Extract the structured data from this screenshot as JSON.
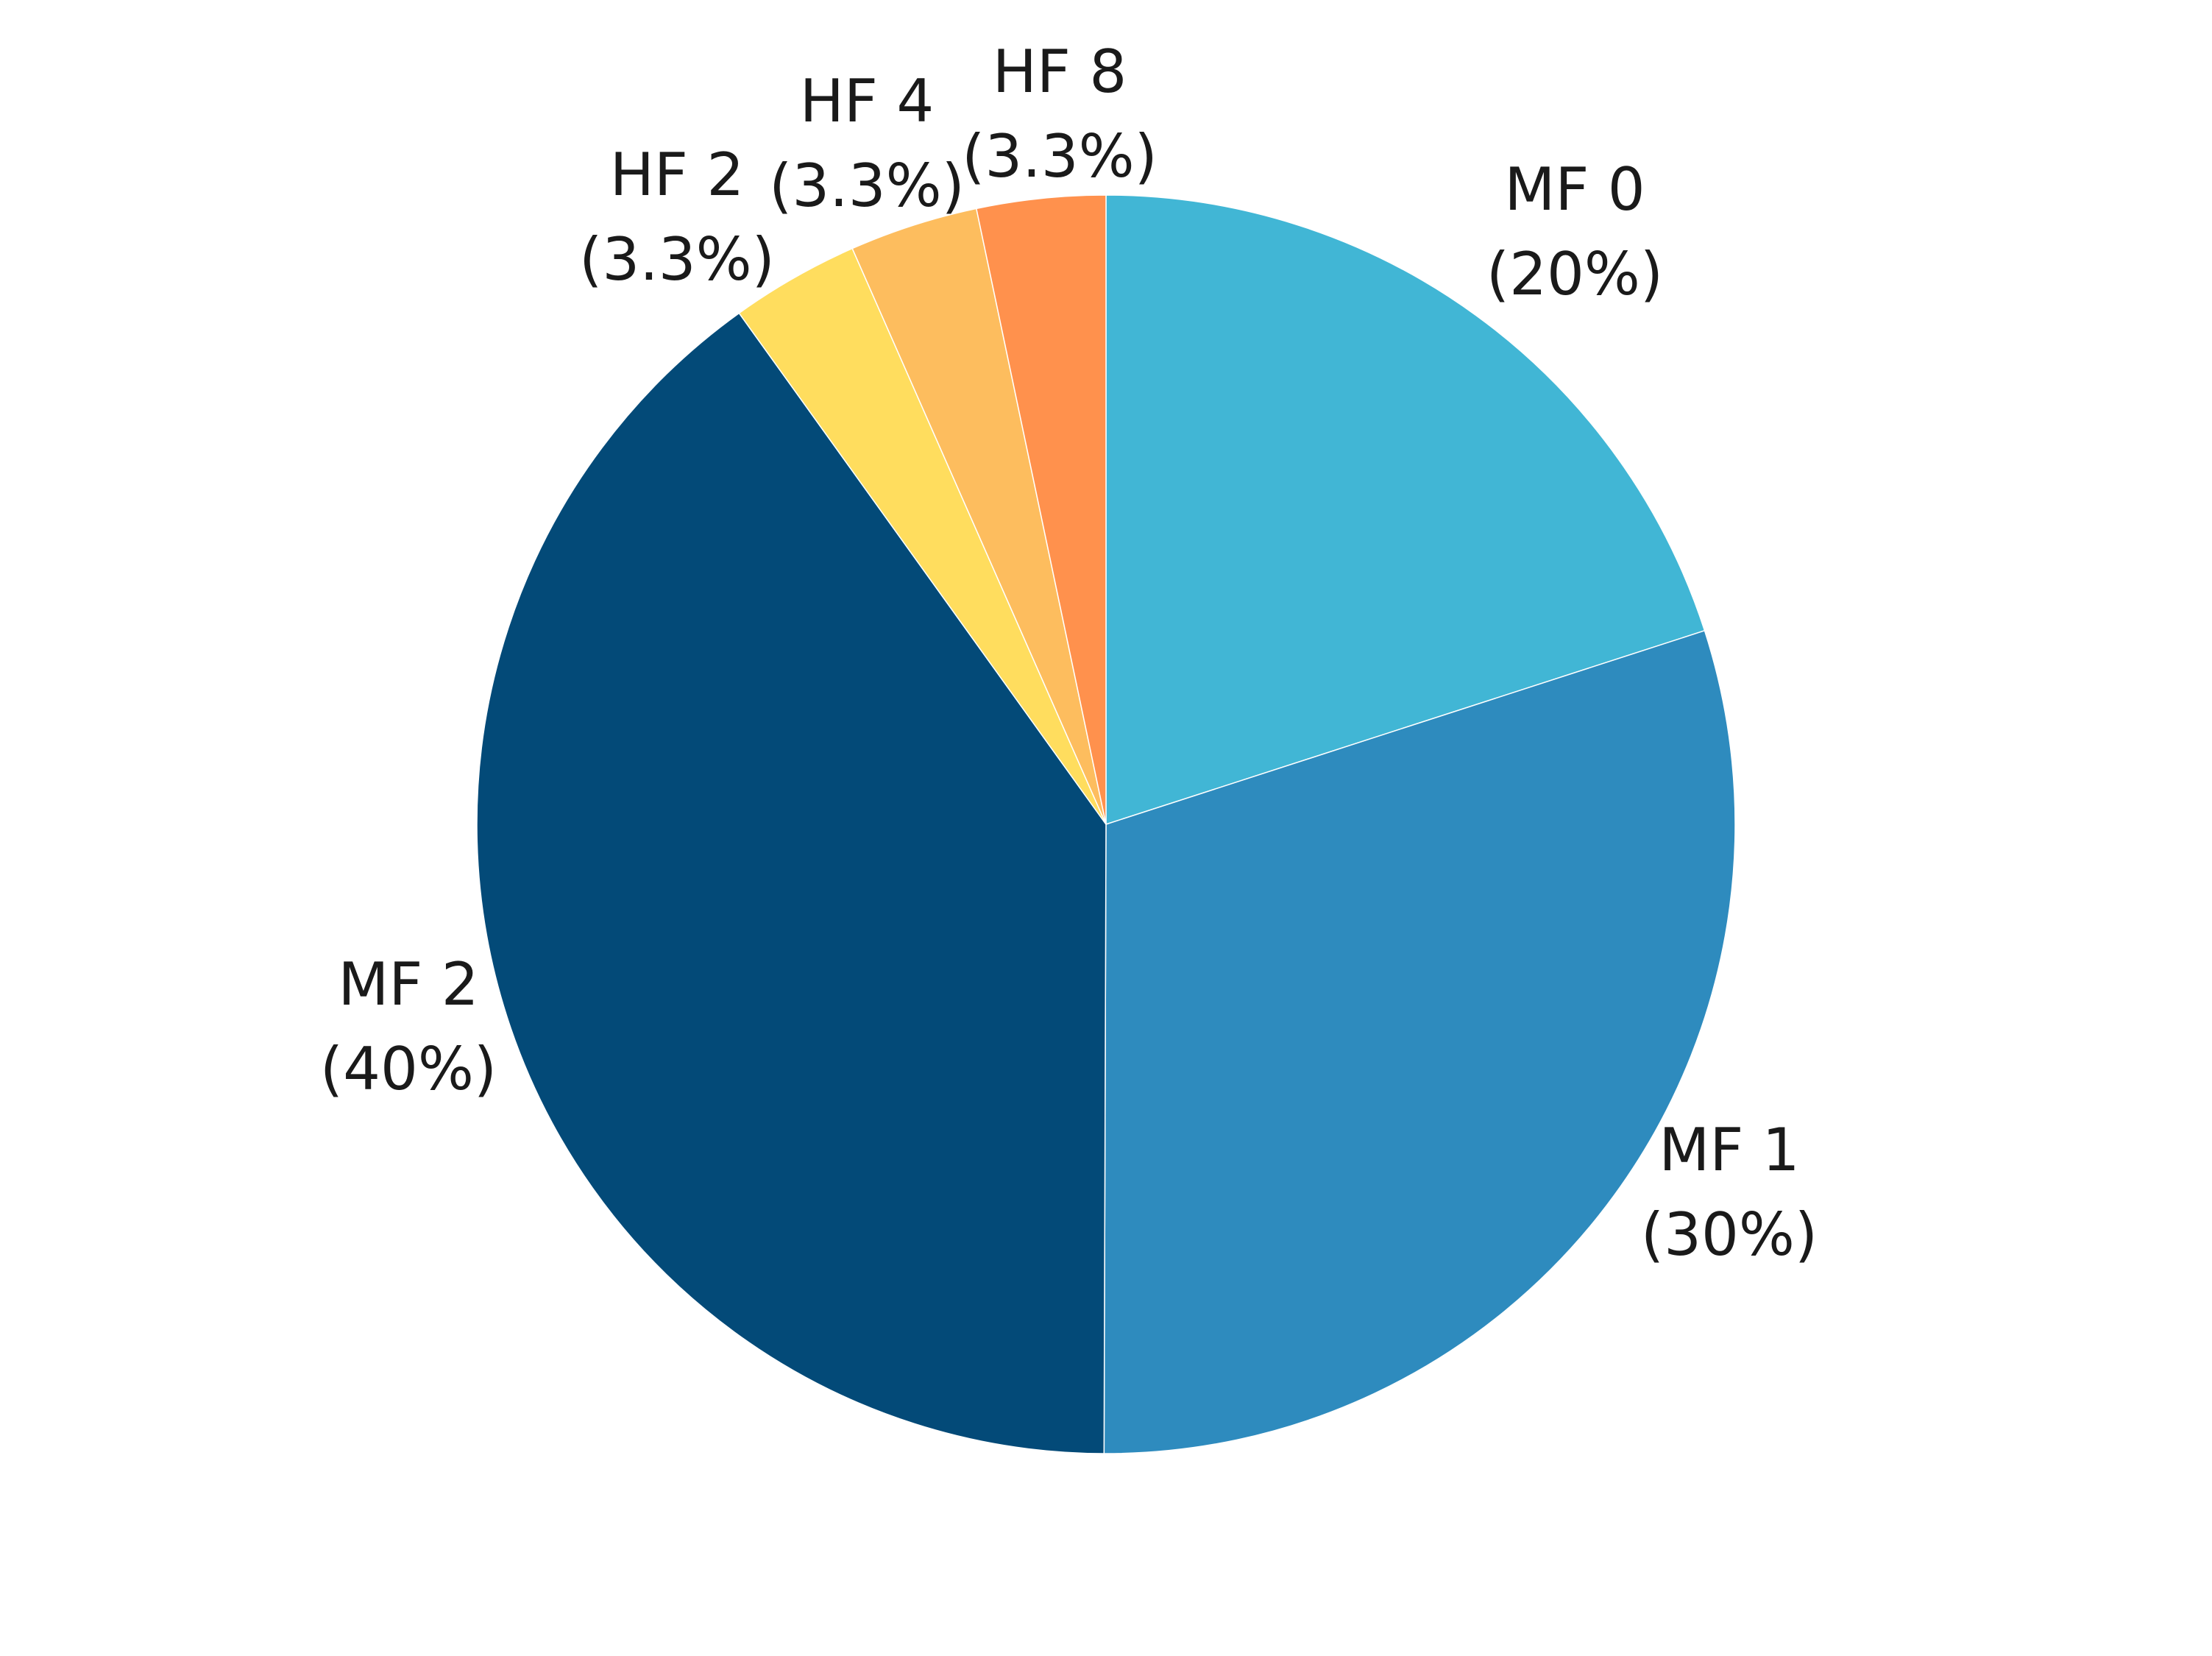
{
  "chart_data": {
    "type": "pie",
    "start_angle_deg": 0,
    "direction": "clockwise",
    "slices": [
      {
        "name": "MF 0",
        "value": 20,
        "label": "(20%)",
        "color": "#41B6D5"
      },
      {
        "name": "MF 1",
        "value": 30,
        "label": "(30%)",
        "color": "#2E8BBE"
      },
      {
        "name": "MF 2",
        "value": 40,
        "label": "(40%)",
        "color": "#034A78"
      },
      {
        "name": "HF 2",
        "value": 3.3,
        "label": "(3.3%)",
        "color": "#FFDD5E"
      },
      {
        "name": "HF 4",
        "value": 3.3,
        "label": "(3.3%)",
        "color": "#FDBD5E"
      },
      {
        "name": "HF 8",
        "value": 3.3,
        "label": "(3.3%)",
        "color": "#FF914D"
      }
    ]
  }
}
